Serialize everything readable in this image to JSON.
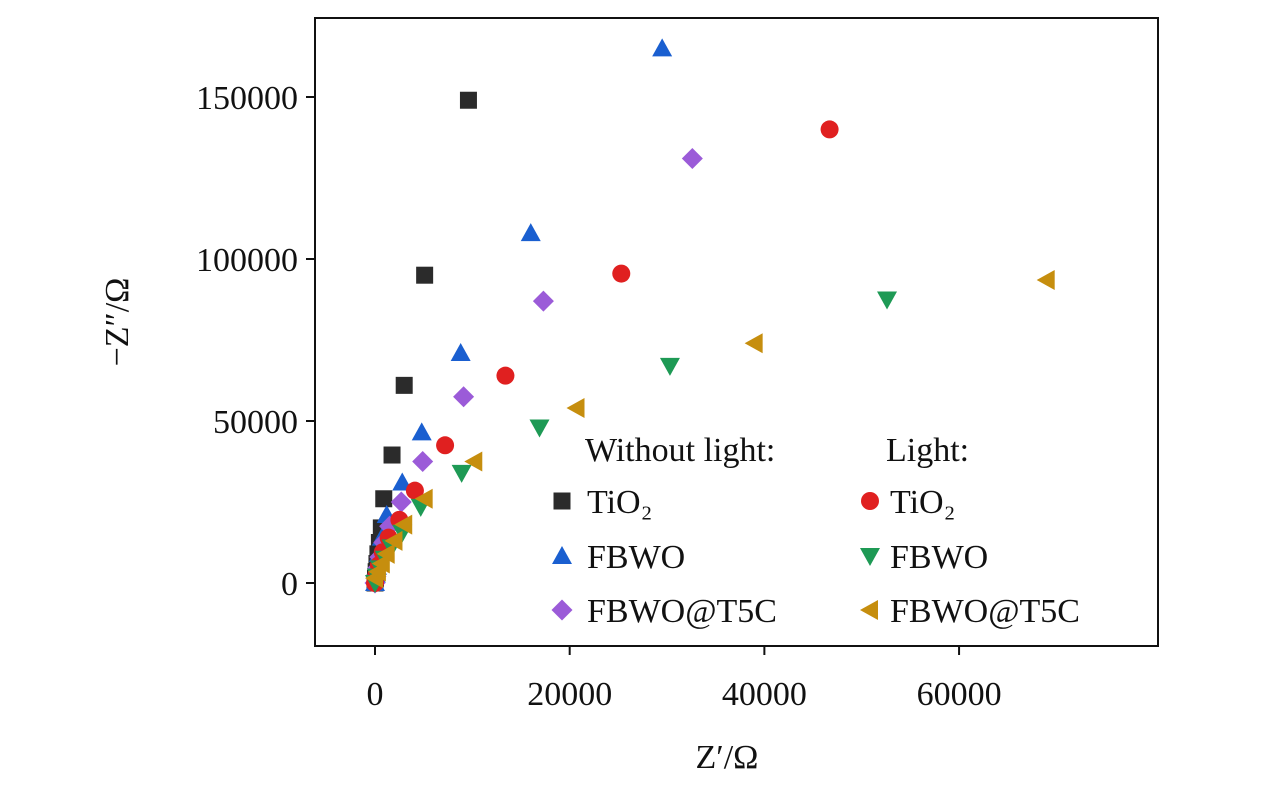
{
  "chart_data": {
    "type": "scatter",
    "title": "",
    "xlabel": "Z′/Ω",
    "ylabel": "−Z″/Ω",
    "xlim": [
      -5000,
      80000
    ],
    "ylim": [
      -20000,
      175000
    ],
    "xticks": [
      0,
      20000,
      40000,
      60000
    ],
    "yticks": [
      0,
      50000,
      100000,
      150000
    ],
    "grid": false,
    "legend_position": "bottom-right",
    "legend_groups": [
      "Without light:",
      "Light:"
    ],
    "series": [
      {
        "name": "TiO₂",
        "group": "Without light",
        "marker": "square",
        "color": "#2b2b2b",
        "x": [
          0,
          50,
          120,
          200,
          300,
          450,
          650,
          900,
          1750,
          3000,
          5100,
          9600
        ],
        "y": [
          0,
          1500,
          3500,
          6000,
          9000,
          12500,
          17000,
          26000,
          39500,
          61000,
          95000,
          149000
        ]
      },
      {
        "name": "FBWO",
        "group": "Without light",
        "marker": "triangle-up",
        "color": "#1a5fd0",
        "x": [
          0,
          80,
          200,
          400,
          700,
          1200,
          2800,
          4800,
          8800,
          16000,
          29500
        ],
        "y": [
          0,
          2500,
          5000,
          9000,
          14000,
          21000,
          31000,
          46500,
          71000,
          108000,
          165000
        ]
      },
      {
        "name": "FBWO@T5C",
        "group": "Without light",
        "marker": "diamond",
        "color": "#9b5bd8",
        "x": [
          0,
          100,
          250,
          500,
          900,
          1500,
          2700,
          4900,
          9100,
          17300,
          32600
        ],
        "y": [
          0,
          2000,
          4500,
          8000,
          12500,
          17500,
          25000,
          37500,
          57500,
          87000,
          131000
        ]
      },
      {
        "name": "TiO₂",
        "group": "Light",
        "marker": "circle",
        "color": "#e02020",
        "x": [
          0,
          150,
          400,
          800,
          1400,
          2500,
          4100,
          7200,
          13400,
          25300,
          46700
        ],
        "y": [
          0,
          2500,
          5500,
          9500,
          14000,
          19500,
          28500,
          42500,
          64000,
          95500,
          140000
        ]
      },
      {
        "name": "FBWO",
        "group": "Light",
        "marker": "triangle-down",
        "color": "#1e9a55",
        "x": [
          0,
          200,
          500,
          1000,
          1700,
          2800,
          4700,
          8900,
          16900,
          30300,
          52600
        ],
        "y": [
          0,
          2000,
          4500,
          7500,
          11000,
          15500,
          23500,
          34000,
          48000,
          67000,
          87500
        ]
      },
      {
        "name": "FBWO@T5C",
        "group": "Light",
        "marker": "triangle-left",
        "color": "#c68e0e",
        "x": [
          0,
          300,
          700,
          1200,
          2000,
          3000,
          5100,
          10200,
          20700,
          39000,
          69000
        ],
        "y": [
          1500,
          3500,
          6000,
          9000,
          13000,
          18000,
          26000,
          37500,
          54000,
          74000,
          93500
        ]
      }
    ]
  }
}
